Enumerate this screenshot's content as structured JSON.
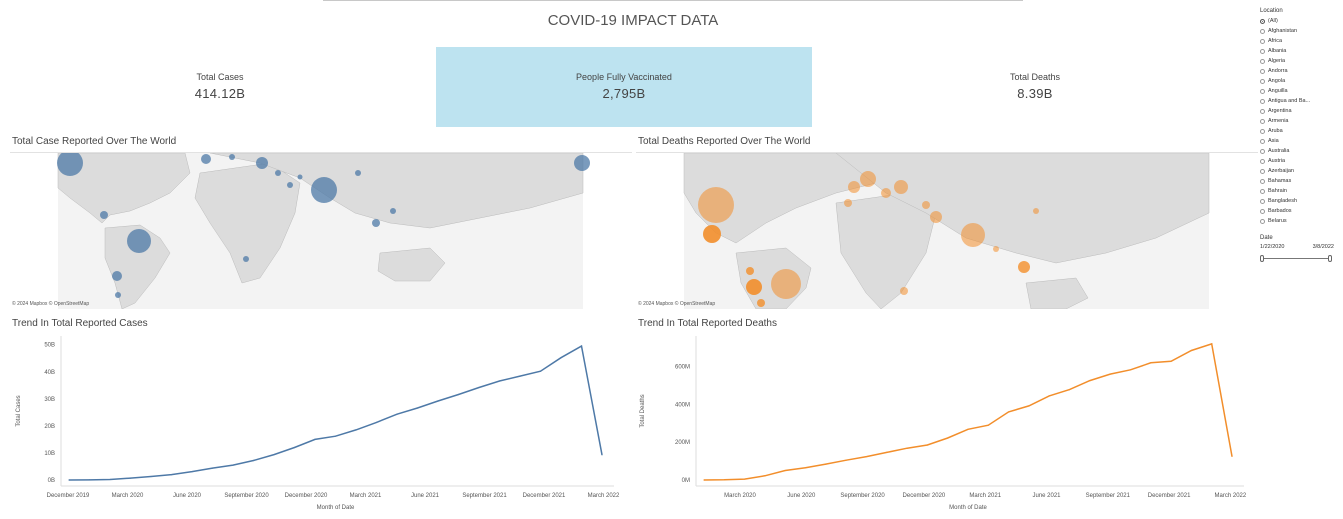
{
  "title": "COVID-19 IMPACT DATA",
  "kpis": {
    "total_cases": {
      "label": "Total Cases",
      "value": "414.12B"
    },
    "vaccinated": {
      "label": "People Fully Vaccinated",
      "value": "2,795B"
    },
    "total_deaths": {
      "label": "Total Deaths",
      "value": "8.39B"
    }
  },
  "maps": {
    "cases": {
      "title": "Total Case Reported Over The World",
      "credit": "© 2024 Mapbox © OpenStreetMap",
      "color": "#4e79a7"
    },
    "deaths": {
      "title": "Total Deaths Reported Over The World",
      "credit": "© 2024 Mapbox © OpenStreetMap",
      "color": "#f28e2b"
    }
  },
  "filter": {
    "title": "Location",
    "options": [
      "(All)",
      "Afghanistan",
      "Africa",
      "Albania",
      "Algeria",
      "Andorra",
      "Angola",
      "Anguilla",
      "Antigua and Ba...",
      "Argentina",
      "Armenia",
      "Aruba",
      "Asia",
      "Australia",
      "Austria",
      "Azerbaijan",
      "Bahamas",
      "Bahrain",
      "Bangladesh",
      "Barbados",
      "Belarus"
    ],
    "selected": "(All)",
    "date_title": "Date",
    "date_start": "1/22/2020",
    "date_end": "3/8/2022"
  },
  "chart_data": [
    {
      "type": "line",
      "title": "Trend In Total Reported Cases",
      "xlabel": "Month of Date",
      "ylabel": "Total Cases",
      "x_ticks": [
        "December 2019",
        "March 2020",
        "June 2020",
        "September 2020",
        "December 2020",
        "March 2021",
        "June 2021",
        "September 2021",
        "December 2021",
        "March 2022"
      ],
      "y_ticks": [
        "0B",
        "10B",
        "20B",
        "30B",
        "40B",
        "50B"
      ],
      "ylim": [
        0,
        51
      ],
      "color": "#4e79a7",
      "x": [
        "Jan 2020",
        "Feb 2020",
        "Mar 2020",
        "Apr 2020",
        "May 2020",
        "Jun 2020",
        "Jul 2020",
        "Aug 2020",
        "Sep 2020",
        "Oct 2020",
        "Nov 2020",
        "Dec 2020",
        "Jan 2021",
        "Feb 2021",
        "Mar 2021",
        "Apr 2021",
        "May 2021",
        "Jun 2021",
        "Jul 2021",
        "Aug 2021",
        "Sep 2021",
        "Oct 2021",
        "Nov 2021",
        "Dec 2021",
        "Jan 2022",
        "Feb 2022",
        "Mar 2022"
      ],
      "values": [
        0.0,
        0.05,
        0.2,
        0.7,
        1.3,
        2.0,
        3.1,
        4.4,
        5.5,
        7.2,
        9.4,
        12.0,
        15.0,
        16.2,
        18.5,
        21.3,
        24.3,
        26.6,
        29.2,
        31.6,
        34.2,
        36.6,
        38.4,
        40.2,
        45.2,
        49.5,
        9.3
      ]
    },
    {
      "type": "line",
      "title": "Trend In Total Reported Deaths",
      "xlabel": "Month of Date",
      "ylabel": "Total Deaths",
      "x_ticks": [
        "March 2020",
        "June 2020",
        "September 2020",
        "December 2020",
        "March 2021",
        "June 2021",
        "September 2021",
        "December 2021",
        "March 2022"
      ],
      "y_ticks": [
        "0M",
        "200M",
        "400M",
        "600M"
      ],
      "ylim": [
        0,
        730
      ],
      "color": "#f28e2b",
      "x": [
        "Jan 2020",
        "Feb 2020",
        "Mar 2020",
        "Apr 2020",
        "May 2020",
        "Jun 2020",
        "Jul 2020",
        "Aug 2020",
        "Sep 2020",
        "Oct 2020",
        "Nov 2020",
        "Dec 2020",
        "Jan 2021",
        "Feb 2021",
        "Mar 2021",
        "Apr 2021",
        "May 2021",
        "Jun 2021",
        "Jul 2021",
        "Aug 2021",
        "Sep 2021",
        "Oct 2021",
        "Nov 2021",
        "Dec 2021",
        "Jan 2022",
        "Feb 2022",
        "Mar 2022"
      ],
      "values": [
        0,
        1,
        5,
        22,
        50,
        65,
        84,
        105,
        124,
        146,
        168,
        185,
        222,
        268,
        290,
        360,
        392,
        445,
        478,
        526,
        560,
        583,
        620,
        628,
        685,
        720,
        125
      ]
    }
  ]
}
